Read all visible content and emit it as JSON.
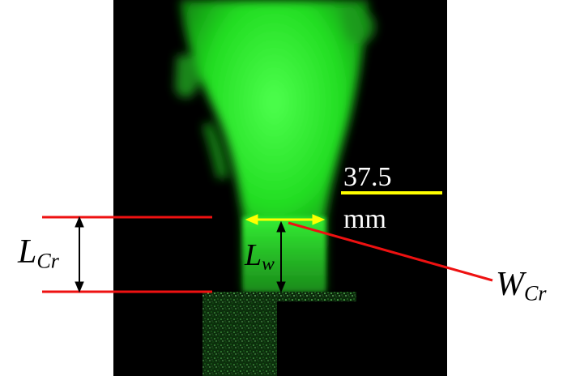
{
  "figure": {
    "scale_bar": {
      "value": "37.5",
      "unit": "mm"
    },
    "labels": {
      "l_cr": {
        "main": "L",
        "sub": "Cr"
      },
      "w_cr": {
        "main": "W",
        "sub": "Cr"
      },
      "l_w": {
        "main": "L",
        "sub": "w"
      }
    },
    "colors": {
      "background": "#000000",
      "jet": "#22ee22",
      "scale_bar": "#ffff00",
      "width_arrow": "#ffff00",
      "reference_lines": "#ee1111",
      "dimension_arrows": "#000000"
    }
  }
}
